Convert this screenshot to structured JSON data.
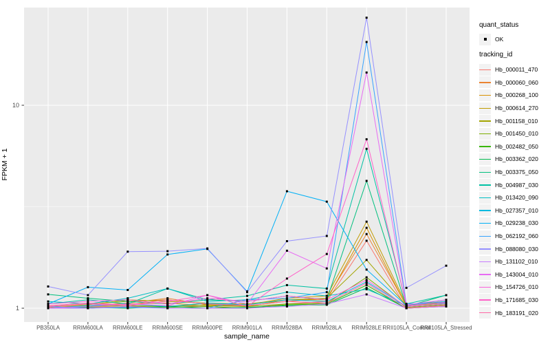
{
  "figure": {
    "background": "#FFFFFF",
    "panel_background": "#EBEBEB",
    "gridline_color": "#FFFFFF",
    "tick_text_color": "#4D4D4D",
    "point_color": "#000000"
  },
  "legend": {
    "quant_status_title": "quant_status",
    "quant_status_value": "OK",
    "tracking_id_title": "tracking_id"
  },
  "chart_data": {
    "type": "line",
    "title": "",
    "xlabel": "sample_name",
    "ylabel": "FPKM + 1",
    "y_scale": "log10",
    "y_ticks": [
      "1",
      "10"
    ],
    "ylim": [
      0.93,
      31
    ],
    "grid": true,
    "legend_position": "right",
    "point_marker": "small black square, one per data point (quant_status = OK)",
    "x_categories": [
      "PB350LA",
      "RRIM600LA",
      "RRIM600LE",
      "RRIM600SE",
      "RRIM600PE",
      "RRIM901LA",
      "RRIM928BA",
      "RRIM928LA",
      "RRIM928LE",
      "RRII105LA_Control",
      "RRII105LA_Stressed"
    ],
    "series": [
      {
        "tracking_id": "Hb_000011_470",
        "color": "#F8766D",
        "values": [
          1.0,
          1.01,
          1.02,
          1.03,
          1.02,
          1.0,
          1.05,
          1.08,
          2.15,
          1.0,
          1.02
        ]
      },
      {
        "tracking_id": "Hb_000060_060",
        "color": "#EA8331",
        "values": [
          1.01,
          1.03,
          1.06,
          1.12,
          1.04,
          1.03,
          1.08,
          1.12,
          2.32,
          1.03,
          1.07
        ]
      },
      {
        "tracking_id": "Hb_000268_100",
        "color": "#D89000",
        "values": [
          1.0,
          1.02,
          1.05,
          1.06,
          1.03,
          1.02,
          1.1,
          1.1,
          2.49,
          1.02,
          1.05
        ]
      },
      {
        "tracking_id": "Hb_000614_270",
        "color": "#C09B00",
        "values": [
          1.02,
          1.05,
          1.08,
          1.1,
          1.05,
          1.04,
          1.12,
          1.15,
          2.67,
          1.04,
          1.08
        ]
      },
      {
        "tracking_id": "Hb_001158_010",
        "color": "#A3A500",
        "values": [
          1.02,
          1.04,
          1.1,
          1.08,
          1.06,
          1.05,
          1.1,
          1.12,
          1.73,
          1.03,
          1.06
        ]
      },
      {
        "tracking_id": "Hb_001450_010",
        "color": "#7CAE00",
        "values": [
          1.0,
          1.02,
          1.03,
          1.02,
          1.04,
          1.02,
          1.05,
          1.06,
          1.42,
          1.01,
          1.04
        ]
      },
      {
        "tracking_id": "Hb_002482_050",
        "color": "#39B600",
        "values": [
          1.0,
          1.0,
          1.02,
          1.01,
          1.02,
          1.0,
          1.04,
          1.05,
          1.3,
          1.0,
          1.03
        ]
      },
      {
        "tracking_id": "Hb_003362_020",
        "color": "#00BB4E",
        "values": [
          1.0,
          1.01,
          1.0,
          1.02,
          1.0,
          1.01,
          1.03,
          1.04,
          1.26,
          1.0,
          1.02
        ]
      },
      {
        "tracking_id": "Hb_003375_050",
        "color": "#00BF7D",
        "values": [
          1.17,
          1.12,
          1.08,
          1.05,
          1.1,
          1.08,
          1.15,
          1.1,
          4.24,
          1.02,
          1.16
        ]
      },
      {
        "tracking_id": "Hb_004987_030",
        "color": "#00C1A3",
        "values": [
          1.05,
          1.1,
          1.05,
          1.25,
          1.1,
          1.15,
          1.3,
          1.25,
          6.1,
          1.05,
          1.16
        ]
      },
      {
        "tracking_id": "Hb_013420_090",
        "color": "#00BFC4",
        "values": [
          1.08,
          1.05,
          1.12,
          1.25,
          1.08,
          1.1,
          1.2,
          1.15,
          1.24,
          1.03,
          1.1
        ]
      },
      {
        "tracking_id": "Hb_027357_010",
        "color": "#00BAE0",
        "values": [
          1.0,
          1.03,
          1.05,
          1.02,
          1.06,
          1.04,
          1.1,
          1.08,
          1.35,
          1.02,
          1.05
        ]
      },
      {
        "tracking_id": "Hb_029238_030",
        "color": "#00B0F6",
        "values": [
          1.05,
          1.27,
          1.23,
          1.84,
          1.96,
          1.21,
          3.77,
          3.35,
          1.55,
          1.03,
          1.08
        ]
      },
      {
        "tracking_id": "Hb_062192_060",
        "color": "#35A2FF",
        "values": [
          1.02,
          1.0,
          1.01,
          1.0,
          1.0,
          1.1,
          1.12,
          1.2,
          20.5,
          1.05,
          1.06
        ]
      },
      {
        "tracking_id": "Hb_088080_030",
        "color": "#9590FF",
        "values": [
          1.28,
          1.16,
          1.9,
          1.91,
          1.97,
          1.2,
          2.14,
          2.27,
          27.0,
          1.26,
          1.62
        ]
      },
      {
        "tracking_id": "Hb_131102_010",
        "color": "#C77CFF",
        "values": [
          1.0,
          1.0,
          1.02,
          1.0,
          1.0,
          1.0,
          1.02,
          1.05,
          1.17,
          1.0,
          1.02
        ]
      },
      {
        "tracking_id": "Hb_143004_010",
        "color": "#E76BF3",
        "values": [
          1.0,
          1.02,
          1.05,
          1.03,
          1.16,
          1.05,
          1.92,
          1.57,
          14.5,
          1.04,
          1.1
        ]
      },
      {
        "tracking_id": "Hb_154726_010",
        "color": "#FA62DB",
        "values": [
          1.05,
          1.08,
          1.1,
          1.05,
          1.12,
          1.08,
          1.15,
          1.1,
          1.38,
          1.02,
          1.05
        ]
      },
      {
        "tracking_id": "Hb_171685_030",
        "color": "#FF61C9",
        "values": [
          1.02,
          1.05,
          1.03,
          1.08,
          1.16,
          1.02,
          1.4,
          1.85,
          6.8,
          1.03,
          1.07
        ]
      },
      {
        "tracking_id": "Hb_183191_020",
        "color": "#FF67A4",
        "values": [
          1.03,
          1.06,
          1.04,
          1.1,
          1.05,
          1.03,
          1.08,
          1.06,
          1.33,
          1.0,
          1.03
        ]
      }
    ]
  }
}
